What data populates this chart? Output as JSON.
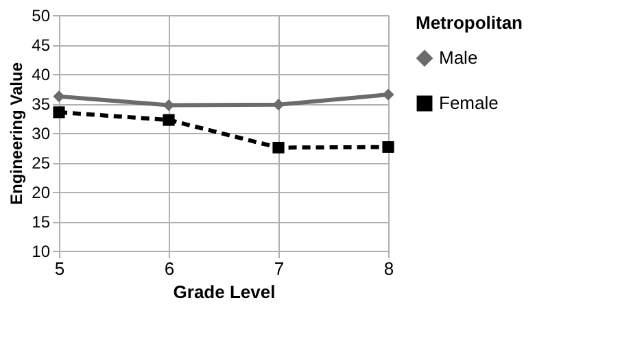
{
  "chart_data": {
    "type": "line",
    "xlabel": "Grade Level",
    "ylabel": "Engineering Value",
    "legend_title": "Metropolitan",
    "x": [
      5,
      6,
      7,
      8
    ],
    "xlim": [
      5,
      8
    ],
    "xticks": [
      5,
      6,
      7,
      8
    ],
    "ylim": [
      10,
      50
    ],
    "yticks": [
      10,
      15,
      20,
      25,
      30,
      35,
      40,
      45,
      50
    ],
    "grid": true,
    "legend": "right",
    "series": [
      {
        "name": "Male",
        "color": "#6b6b6b",
        "marker": "diamond",
        "line_style": "solid",
        "values": [
          36.2,
          34.7,
          34.8,
          36.5
        ]
      },
      {
        "name": "Female",
        "color": "#000000",
        "marker": "square",
        "line_style": "dashed",
        "values": [
          33.5,
          32.2,
          27.5,
          27.6
        ]
      }
    ]
  }
}
